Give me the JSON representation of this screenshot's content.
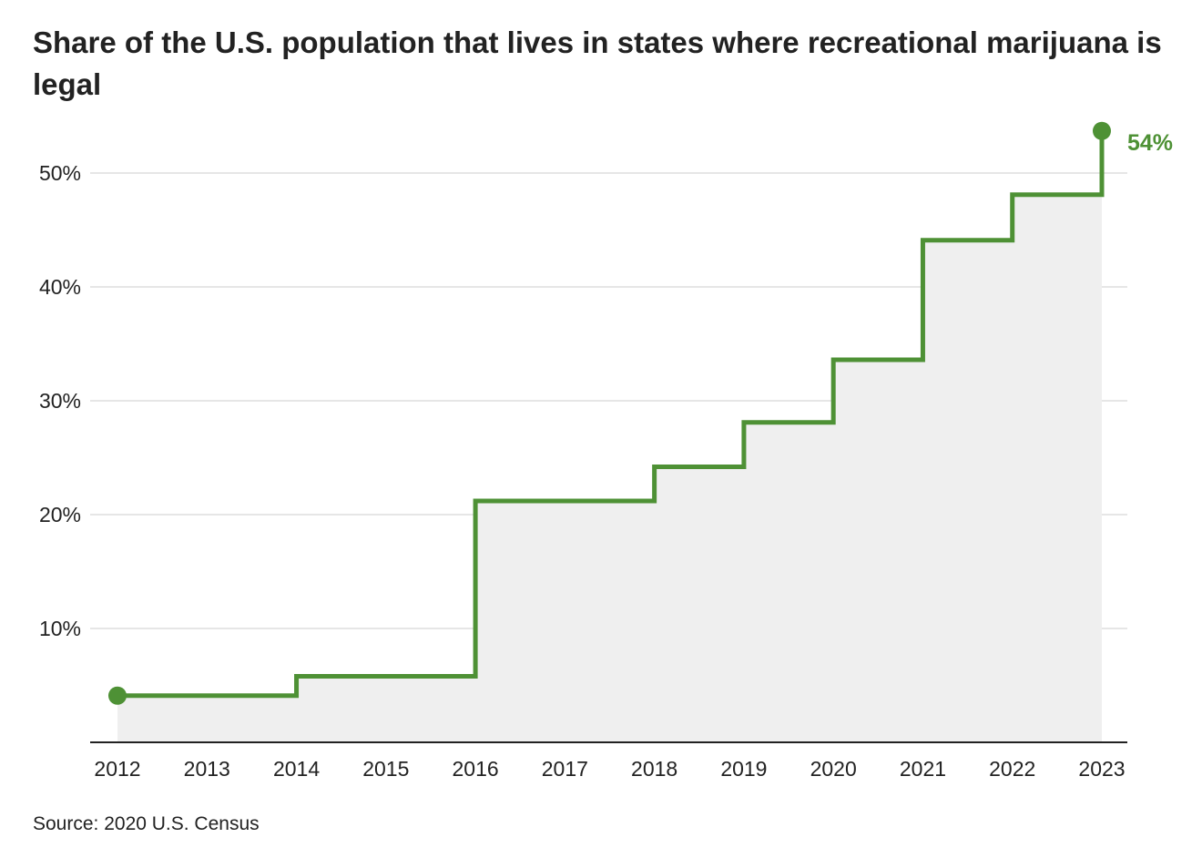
{
  "chart_data": {
    "type": "line",
    "step": "post",
    "title": "Share of the U.S. population that lives in states where recreational marijuana is legal",
    "x": [
      2012,
      2014,
      2016,
      2018,
      2019,
      2020,
      2021,
      2022,
      2023
    ],
    "values": [
      4.1,
      5.8,
      21.2,
      24.2,
      28.1,
      33.6,
      44.1,
      48.1,
      53.7
    ],
    "x_ticks": [
      "2012",
      "2013",
      "2014",
      "2015",
      "2016",
      "2017",
      "2018",
      "2019",
      "2020",
      "2021",
      "2022",
      "2023"
    ],
    "y_ticks": [
      {
        "value": 10,
        "label": "10%"
      },
      {
        "value": 20,
        "label": "20%"
      },
      {
        "value": 30,
        "label": "30%"
      },
      {
        "value": 40,
        "label": "40%"
      },
      {
        "value": 50,
        "label": "50%"
      }
    ],
    "ylim": [
      0,
      54
    ],
    "xlim": [
      2012,
      2023
    ],
    "end_label": "54%",
    "grid": true,
    "area_fill": true,
    "colors": {
      "line": "#4e9135",
      "area": "#efefef",
      "grid": "#dddddd",
      "axis": "#222222"
    }
  },
  "source": "Source: 2020 U.S. Census"
}
